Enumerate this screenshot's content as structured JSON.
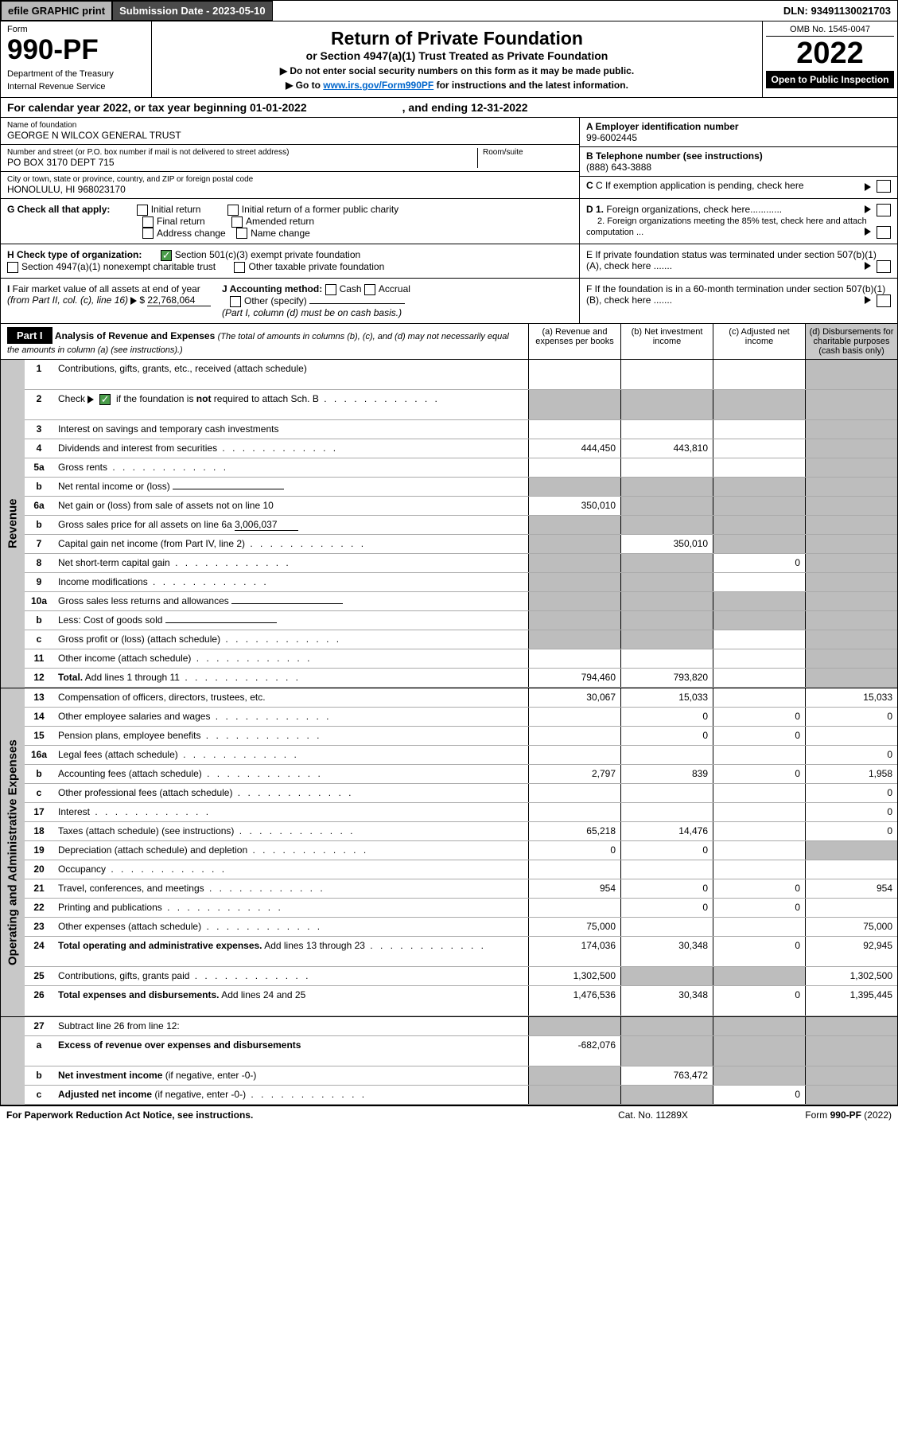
{
  "topbar": {
    "efile": "efile GRAPHIC print",
    "submission": "Submission Date - 2023-05-10",
    "dln": "DLN: 93491130021703"
  },
  "header": {
    "form_label": "Form",
    "form_num": "990-PF",
    "dept1": "Department of the Treasury",
    "dept2": "Internal Revenue Service",
    "title": "Return of Private Foundation",
    "subtitle": "or Section 4947(a)(1) Trust Treated as Private Foundation",
    "note1": "▶ Do not enter social security numbers on this form as it may be made public.",
    "note2_pre": "▶ Go to ",
    "note2_link": "www.irs.gov/Form990PF",
    "note2_post": " for instructions and the latest information.",
    "omb": "OMB No. 1545-0047",
    "year": "2022",
    "open": "Open to Public Inspection"
  },
  "calendar": {
    "text1": "For calendar year 2022, or tax year beginning 01-01-2022",
    "text2": ", and ending 12-31-2022"
  },
  "info": {
    "name_label": "Name of foundation",
    "name": "GEORGE N WILCOX GENERAL TRUST",
    "addr_label": "Number and street (or P.O. box number if mail is not delivered to street address)",
    "addr": "PO BOX 3170 DEPT 715",
    "room_label": "Room/suite",
    "city_label": "City or town, state or province, country, and ZIP or foreign postal code",
    "city": "HONOLULU, HI  968023170",
    "a_label": "A Employer identification number",
    "a_val": "99-6002445",
    "b_label": "B Telephone number (see instructions)",
    "b_val": "(888) 643-3888",
    "c_label": "C If exemption application is pending, check here",
    "d1": "D 1. Foreign organizations, check here............",
    "d2": "2. Foreign organizations meeting the 85% test, check here and attach computation ...",
    "e_label": "E   If private foundation status was terminated under section 507(b)(1)(A), check here .......",
    "f_label": "F   If the foundation is in a 60-month termination under section 507(b)(1)(B), check here .......",
    "g_label": "G Check all that apply:",
    "g_opts": [
      "Initial return",
      "Initial return of a former public charity",
      "Final return",
      "Amended return",
      "Address change",
      "Name change"
    ],
    "h_label": "H Check type of organization:",
    "h1": "Section 501(c)(3) exempt private foundation",
    "h2": "Section 4947(a)(1) nonexempt charitable trust",
    "h3": "Other taxable private foundation",
    "i_label": "I Fair market value of all assets at end of year (from Part II, col. (c), line 16)",
    "i_val": "22,768,064",
    "j_label": "J Accounting method:",
    "j_cash": "Cash",
    "j_accrual": "Accrual",
    "j_other": "Other (specify)",
    "j_note": "(Part I, column (d) must be on cash basis.)"
  },
  "part1": {
    "label": "Part I",
    "title": "Analysis of Revenue and Expenses",
    "title_note": "(The total of amounts in columns (b), (c), and (d) may not necessarily equal the amounts in column (a) (see instructions).)",
    "col_a": "(a)   Revenue and expenses per books",
    "col_b": "(b)   Net investment income",
    "col_c": "(c)   Adjusted net income",
    "col_d": "(d)   Disbursements for charitable purposes (cash basis only)"
  },
  "sections": {
    "revenue": "Revenue",
    "expenses": "Operating and Administrative Expenses"
  },
  "rows": [
    {
      "n": "1",
      "label": "Contributions, gifts, grants, etc., received (attach schedule)",
      "a": "",
      "b": "",
      "c": "",
      "d": "",
      "shaded_d": true,
      "tall": true
    },
    {
      "n": "2",
      "label": "Check ▶ ☑ if the foundation is <b>not</b> required to attach Sch. B",
      "a": "",
      "b": "",
      "c": "",
      "d": "",
      "shaded_all": true,
      "has_check": true,
      "tall": true
    },
    {
      "n": "3",
      "label": "Interest on savings and temporary cash investments",
      "a": "",
      "b": "",
      "c": "",
      "d": "",
      "shaded_d": true
    },
    {
      "n": "4",
      "label": "Dividends and interest from securities",
      "a": "444,450",
      "b": "443,810",
      "c": "",
      "d": "",
      "shaded_d": true,
      "dots": true
    },
    {
      "n": "5a",
      "label": "Gross rents",
      "a": "",
      "b": "",
      "c": "",
      "d": "",
      "shaded_d": true,
      "dots": true
    },
    {
      "n": "b",
      "label": "Net rental income or (loss)",
      "a": "",
      "b": "",
      "c": "",
      "d": "",
      "shaded_all": true,
      "inline_blank": true
    },
    {
      "n": "6a",
      "label": "Net gain or (loss) from sale of assets not on line 10",
      "a": "350,010",
      "b": "",
      "c": "",
      "d": "",
      "shaded_bcd": true
    },
    {
      "n": "b",
      "label": "Gross sales price for all assets on line 6a",
      "a": "",
      "b": "",
      "c": "",
      "d": "",
      "shaded_all": true,
      "inline_val": "3,006,037"
    },
    {
      "n": "7",
      "label": "Capital gain net income (from Part IV, line 2)",
      "a": "",
      "b": "350,010",
      "c": "",
      "d": "",
      "shaded_a": true,
      "shaded_cd": true,
      "dots": true
    },
    {
      "n": "8",
      "label": "Net short-term capital gain",
      "a": "",
      "b": "",
      "c": "0",
      "d": "",
      "shaded_ab": true,
      "shaded_d": true,
      "dots": true
    },
    {
      "n": "9",
      "label": "Income modifications",
      "a": "",
      "b": "",
      "c": "",
      "d": "",
      "shaded_ab": true,
      "shaded_d": true,
      "dots": true
    },
    {
      "n": "10a",
      "label": "Gross sales less returns and allowances",
      "a": "",
      "b": "",
      "c": "",
      "d": "",
      "shaded_all": true,
      "inline_blank": true
    },
    {
      "n": "b",
      "label": "Less: Cost of goods sold",
      "a": "",
      "b": "",
      "c": "",
      "d": "",
      "shaded_all": true,
      "inline_blank": true,
      "dots": true
    },
    {
      "n": "c",
      "label": "Gross profit or (loss) (attach schedule)",
      "a": "",
      "b": "",
      "c": "",
      "d": "",
      "shaded_ab": true,
      "shaded_d": true,
      "dots": true
    },
    {
      "n": "11",
      "label": "Other income (attach schedule)",
      "a": "",
      "b": "",
      "c": "",
      "d": "",
      "shaded_d": true,
      "dots": true
    },
    {
      "n": "12",
      "label": "<b>Total.</b> Add lines 1 through 11",
      "a": "794,460",
      "b": "793,820",
      "c": "",
      "d": "",
      "shaded_d": true,
      "dots": true
    },
    {
      "n": "13",
      "label": "Compensation of officers, directors, trustees, etc.",
      "a": "30,067",
      "b": "15,033",
      "c": "",
      "d": "15,033",
      "sec": "exp"
    },
    {
      "n": "14",
      "label": "Other employee salaries and wages",
      "a": "",
      "b": "0",
      "c": "0",
      "d": "0",
      "sec": "exp",
      "dots": true
    },
    {
      "n": "15",
      "label": "Pension plans, employee benefits",
      "a": "",
      "b": "0",
      "c": "0",
      "d": "",
      "sec": "exp",
      "dots": true
    },
    {
      "n": "16a",
      "label": "Legal fees (attach schedule)",
      "a": "",
      "b": "",
      "c": "",
      "d": "0",
      "sec": "exp",
      "dots": true
    },
    {
      "n": "b",
      "label": "Accounting fees (attach schedule)",
      "a": "2,797",
      "b": "839",
      "c": "0",
      "d": "1,958",
      "sec": "exp",
      "dots": true
    },
    {
      "n": "c",
      "label": "Other professional fees (attach schedule)",
      "a": "",
      "b": "",
      "c": "",
      "d": "0",
      "sec": "exp",
      "dots": true
    },
    {
      "n": "17",
      "label": "Interest",
      "a": "",
      "b": "",
      "c": "",
      "d": "0",
      "sec": "exp",
      "dots": true
    },
    {
      "n": "18",
      "label": "Taxes (attach schedule) (see instructions)",
      "a": "65,218",
      "b": "14,476",
      "c": "",
      "d": "0",
      "sec": "exp",
      "dots": true
    },
    {
      "n": "19",
      "label": "Depreciation (attach schedule) and depletion",
      "a": "0",
      "b": "0",
      "c": "",
      "d": "",
      "sec": "exp",
      "shaded_d": true,
      "dots": true
    },
    {
      "n": "20",
      "label": "Occupancy",
      "a": "",
      "b": "",
      "c": "",
      "d": "",
      "sec": "exp",
      "dots": true
    },
    {
      "n": "21",
      "label": "Travel, conferences, and meetings",
      "a": "954",
      "b": "0",
      "c": "0",
      "d": "954",
      "sec": "exp",
      "dots": true
    },
    {
      "n": "22",
      "label": "Printing and publications",
      "a": "",
      "b": "0",
      "c": "0",
      "d": "",
      "sec": "exp",
      "dots": true
    },
    {
      "n": "23",
      "label": "Other expenses (attach schedule)",
      "a": "75,000",
      "b": "",
      "c": "",
      "d": "75,000",
      "sec": "exp",
      "dots": true
    },
    {
      "n": "24",
      "label": "<b>Total operating and administrative expenses.</b> Add lines 13 through 23",
      "a": "174,036",
      "b": "30,348",
      "c": "0",
      "d": "92,945",
      "sec": "exp",
      "tall": true,
      "dots": true
    },
    {
      "n": "25",
      "label": "Contributions, gifts, grants paid",
      "a": "1,302,500",
      "b": "",
      "c": "",
      "d": "1,302,500",
      "sec": "exp",
      "shaded_bc": true,
      "dots": true
    },
    {
      "n": "26",
      "label": "<b>Total expenses and disbursements.</b> Add lines 24 and 25",
      "a": "1,476,536",
      "b": "30,348",
      "c": "0",
      "d": "1,395,445",
      "sec": "exp",
      "tall": true
    },
    {
      "n": "27",
      "label": "Subtract line 26 from line 12:",
      "a": "",
      "b": "",
      "c": "",
      "d": "",
      "sec": "none",
      "shaded_all": true
    },
    {
      "n": "a",
      "label": "<b>Excess of revenue over expenses and disbursements</b>",
      "a": "-682,076",
      "b": "",
      "c": "",
      "d": "",
      "sec": "none",
      "shaded_bcd": true,
      "tall": true
    },
    {
      "n": "b",
      "label": "<b>Net investment income</b> (if negative, enter -0-)",
      "a": "",
      "b": "763,472",
      "c": "",
      "d": "",
      "sec": "none",
      "shaded_a": true,
      "shaded_cd": true
    },
    {
      "n": "c",
      "label": "<b>Adjusted net income</b> (if negative, enter -0-)",
      "a": "",
      "b": "",
      "c": "0",
      "d": "",
      "sec": "none",
      "shaded_ab": true,
      "shaded_d": true,
      "dots": true
    }
  ],
  "footer": {
    "left": "For Paperwork Reduction Act Notice, see instructions.",
    "mid": "Cat. No. 11289X",
    "right": "Form 990-PF (2022)"
  }
}
